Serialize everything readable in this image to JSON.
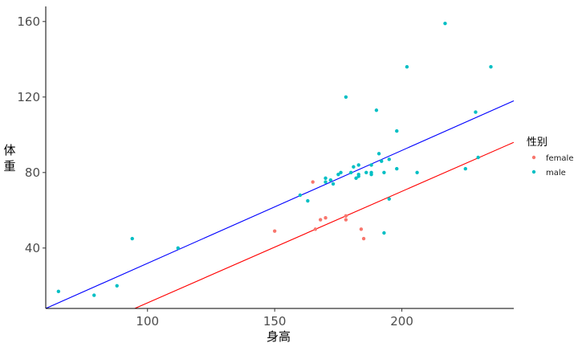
{
  "chart_data": {
    "type": "scatter",
    "xlabel": "身高",
    "ylabel": "体重",
    "xlim": [
      60,
      244
    ],
    "ylim": [
      8,
      168
    ],
    "x_ticks": [
      100,
      150,
      200
    ],
    "y_ticks": [
      40,
      80,
      120,
      160
    ],
    "grid": false,
    "legend": {
      "title": "性别",
      "placement": "right"
    },
    "series": [
      {
        "name": "female",
        "color": "#F8766D",
        "line_color": "#FF0000",
        "points": [
          [
            150,
            49
          ],
          [
            165,
            75
          ],
          [
            166,
            50
          ],
          [
            168,
            55
          ],
          [
            170,
            56
          ],
          [
            178,
            57
          ],
          [
            178,
            55
          ],
          [
            184,
            50
          ],
          [
            185,
            45
          ]
        ],
        "fit": {
          "x": [
            95,
            244
          ],
          "y": [
            8,
            96
          ]
        }
      },
      {
        "name": "male",
        "color": "#00BFC4",
        "line_color": "#0000FF",
        "points": [
          [
            65,
            17
          ],
          [
            79,
            15
          ],
          [
            88,
            20
          ],
          [
            94,
            45
          ],
          [
            112,
            40
          ],
          [
            160,
            68
          ],
          [
            163,
            65
          ],
          [
            170,
            77
          ],
          [
            170,
            75
          ],
          [
            172,
            76
          ],
          [
            173,
            74
          ],
          [
            175,
            79
          ],
          [
            176,
            80
          ],
          [
            178,
            120
          ],
          [
            180,
            80
          ],
          [
            181,
            83
          ],
          [
            182,
            77
          ],
          [
            183,
            84
          ],
          [
            183,
            79
          ],
          [
            183,
            78
          ],
          [
            186,
            80
          ],
          [
            188,
            84
          ],
          [
            188,
            80
          ],
          [
            188,
            79
          ],
          [
            190,
            113
          ],
          [
            191,
            90
          ],
          [
            192,
            86
          ],
          [
            193,
            80
          ],
          [
            193,
            48
          ],
          [
            195,
            87
          ],
          [
            195,
            66
          ],
          [
            198,
            102
          ],
          [
            198,
            82
          ],
          [
            202,
            136
          ],
          [
            206,
            80
          ],
          [
            217,
            159
          ],
          [
            225,
            82
          ],
          [
            229,
            112
          ],
          [
            230,
            88
          ],
          [
            235,
            136
          ]
        ],
        "fit": {
          "x": [
            60,
            244
          ],
          "y": [
            8,
            118
          ]
        }
      }
    ]
  }
}
